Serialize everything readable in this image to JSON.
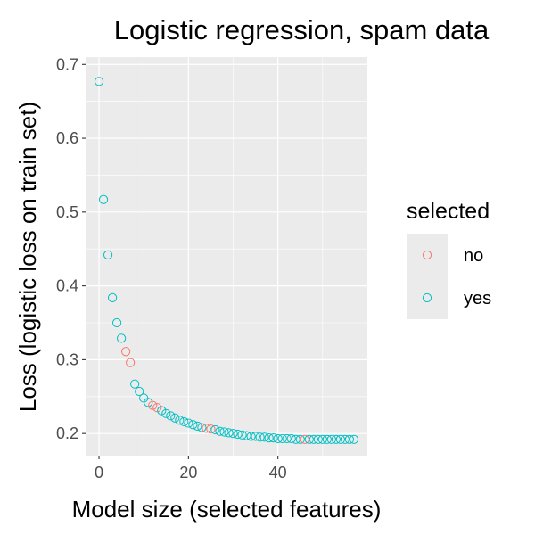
{
  "chart_data": {
    "type": "scatter",
    "title": "Logistic regression, spam data",
    "xlabel": "Model size (selected features)",
    "ylabel": "Loss (logistic loss on train set)",
    "xlim": [
      -3,
      60
    ],
    "ylim": [
      0.17,
      0.71
    ],
    "x_ticks": [
      0,
      20,
      40
    ],
    "y_ticks": [
      0.2,
      0.3,
      0.4,
      0.5,
      0.6,
      0.7
    ],
    "grid": true,
    "legend": {
      "title": "selected",
      "position": "right",
      "entries": [
        {
          "label": "no",
          "color": "#F8766D"
        },
        {
          "label": "yes",
          "color": "#00BFC4"
        }
      ]
    },
    "series": [
      {
        "name": "no",
        "color": "#F8766D",
        "points": [
          [
            6,
            0.311
          ],
          [
            7,
            0.296
          ],
          [
            12,
            0.238
          ],
          [
            13,
            0.235
          ],
          [
            24,
            0.207
          ],
          [
            25,
            0.206
          ],
          [
            46,
            0.192
          ]
        ]
      },
      {
        "name": "yes",
        "color": "#00BFC4",
        "points": [
          [
            0,
            0.677
          ],
          [
            1,
            0.517
          ],
          [
            2,
            0.442
          ],
          [
            3,
            0.384
          ],
          [
            4,
            0.35
          ],
          [
            5,
            0.329
          ],
          [
            8,
            0.267
          ],
          [
            9,
            0.257
          ],
          [
            10,
            0.248
          ],
          [
            11,
            0.242
          ],
          [
            14,
            0.231
          ],
          [
            15,
            0.227
          ],
          [
            16,
            0.224
          ],
          [
            17,
            0.221
          ],
          [
            18,
            0.218
          ],
          [
            19,
            0.216
          ],
          [
            20,
            0.214
          ],
          [
            21,
            0.212
          ],
          [
            22,
            0.21
          ],
          [
            23,
            0.208
          ],
          [
            26,
            0.205
          ],
          [
            27,
            0.203
          ],
          [
            28,
            0.202
          ],
          [
            29,
            0.201
          ],
          [
            30,
            0.2
          ],
          [
            31,
            0.199
          ],
          [
            32,
            0.198
          ],
          [
            33,
            0.197
          ],
          [
            34,
            0.196
          ],
          [
            35,
            0.196
          ],
          [
            36,
            0.195
          ],
          [
            37,
            0.195
          ],
          [
            38,
            0.194
          ],
          [
            39,
            0.194
          ],
          [
            40,
            0.193
          ],
          [
            41,
            0.193
          ],
          [
            42,
            0.193
          ],
          [
            43,
            0.193
          ],
          [
            44,
            0.192
          ],
          [
            45,
            0.192
          ],
          [
            47,
            0.192
          ],
          [
            48,
            0.192
          ],
          [
            49,
            0.192
          ],
          [
            50,
            0.192
          ],
          [
            51,
            0.192
          ],
          [
            52,
            0.192
          ],
          [
            53,
            0.192
          ],
          [
            54,
            0.192
          ],
          [
            55,
            0.192
          ],
          [
            56,
            0.192
          ],
          [
            57,
            0.192
          ]
        ]
      }
    ]
  }
}
